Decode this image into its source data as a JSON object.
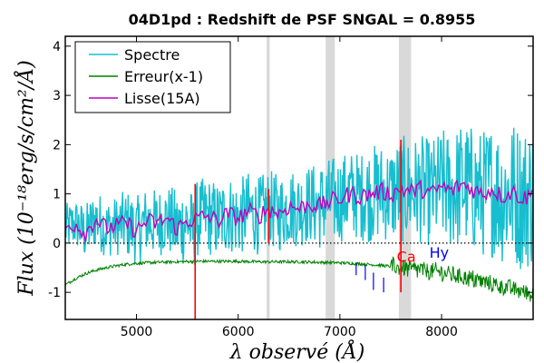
{
  "chart_data": {
    "type": "line",
    "title": "04D1pd : Redshift de PSF SNGAL = 0.8955",
    "xlabel": "λ observé (Å)",
    "ylabel": "Flux (10⁻¹⁸erg/s/cm²/Å)",
    "xlim": [
      4300,
      8900
    ],
    "ylim": [
      -1.55,
      4.2
    ],
    "x_ticks": [
      5000,
      6000,
      7000,
      8000
    ],
    "x_tick_labels": [
      "5000",
      "6000",
      "7000",
      "8000"
    ],
    "y_ticks": [
      -1,
      0,
      1,
      2,
      3,
      4
    ],
    "y_tick_labels": [
      "-1",
      "0",
      "1",
      "2",
      "3",
      "4"
    ],
    "legend_position": "top-left",
    "series": [
      {
        "name": "Spectre",
        "color": "#17becf",
        "x": [
          4300,
          4400,
          4500,
          4600,
          4700,
          4800,
          4900,
          5000,
          5100,
          5200,
          5300,
          5400,
          5500,
          5560,
          5600,
          5700,
          5800,
          5900,
          6000,
          6100,
          6200,
          6300,
          6400,
          6500,
          6600,
          6700,
          6800,
          6900,
          7000,
          7100,
          7200,
          7300,
          7400,
          7500,
          7600,
          7700,
          7800,
          7900,
          8000,
          8100,
          8200,
          8300,
          8400,
          8500,
          8600,
          8700,
          8800,
          8900
        ],
        "y": [
          0.3,
          0.4,
          0.2,
          0.5,
          0.3,
          0.35,
          0.4,
          0.25,
          0.45,
          0.4,
          0.5,
          0.3,
          0.45,
          0.2,
          0.5,
          0.55,
          0.45,
          0.6,
          0.5,
          0.65,
          0.55,
          0.7,
          0.6,
          0.75,
          0.7,
          0.8,
          0.75,
          0.85,
          0.9,
          1.0,
          0.95,
          1.0,
          1.05,
          1.0,
          1.1,
          1.05,
          1.1,
          1.0,
          1.15,
          1.05,
          1.2,
          1.1,
          1.0,
          1.1,
          0.95,
          1.05,
          0.9,
          1.0
        ],
        "noise": [
          0.5,
          0.5,
          0.6,
          0.6,
          0.6,
          0.6,
          0.7,
          0.7,
          0.7,
          0.7,
          0.7,
          0.8,
          0.8,
          0.8,
          0.8,
          0.8,
          0.8,
          0.8,
          0.8,
          0.8,
          0.8,
          0.8,
          0.8,
          0.8,
          0.8,
          0.8,
          0.9,
          0.9,
          0.9,
          0.9,
          0.9,
          1.0,
          1.0,
          1.0,
          1.1,
          1.1,
          1.1,
          1.1,
          1.2,
          1.2,
          1.3,
          1.3,
          1.3,
          1.4,
          1.4,
          1.5,
          1.5,
          1.5
        ]
      },
      {
        "name": "Erreur(x-1)",
        "color": "#008000",
        "x": [
          4300,
          4400,
          4500,
          4600,
          4700,
          4800,
          4900,
          5000,
          5200,
          5400,
          5600,
          5800,
          6000,
          6200,
          6400,
          6600,
          6800,
          7000,
          7200,
          7400,
          7600,
          7800,
          8000,
          8200,
          8400,
          8600,
          8800,
          8900
        ],
        "y": [
          -0.85,
          -0.72,
          -0.62,
          -0.55,
          -0.5,
          -0.46,
          -0.43,
          -0.41,
          -0.39,
          -0.38,
          -0.37,
          -0.37,
          -0.37,
          -0.38,
          -0.38,
          -0.38,
          -0.39,
          -0.4,
          -0.42,
          -0.45,
          -0.5,
          -0.55,
          -0.6,
          -0.68,
          -0.78,
          -0.88,
          -0.98,
          -1.05
        ]
      },
      {
        "name": "Lisse(15A)",
        "color": "#bf00bf",
        "x": [
          4300,
          4400,
          4500,
          4600,
          4700,
          4800,
          4900,
          5000,
          5100,
          5200,
          5300,
          5400,
          5500,
          5600,
          5700,
          5800,
          5900,
          6000,
          6100,
          6200,
          6300,
          6400,
          6500,
          6600,
          6700,
          6800,
          6900,
          7000,
          7100,
          7200,
          7300,
          7400,
          7500,
          7600,
          7700,
          7800,
          7900,
          8000,
          8100,
          8200,
          8300,
          8400,
          8500,
          8600,
          8700,
          8800,
          8900
        ],
        "y": [
          0.3,
          0.4,
          0.2,
          0.5,
          0.3,
          0.35,
          0.4,
          0.25,
          0.45,
          0.4,
          0.5,
          0.3,
          0.45,
          0.5,
          0.55,
          0.45,
          0.6,
          0.5,
          0.65,
          0.55,
          0.7,
          0.6,
          0.75,
          0.7,
          0.8,
          0.75,
          0.85,
          0.9,
          1.0,
          0.95,
          1.0,
          1.05,
          1.0,
          1.1,
          1.05,
          1.1,
          1.0,
          1.15,
          1.05,
          1.2,
          1.1,
          1.0,
          1.1,
          0.95,
          1.05,
          0.9,
          1.0
        ],
        "noise": 0.18
      }
    ],
    "reference_line": {
      "y": 0,
      "style": "dotted",
      "color": "#000000"
    },
    "shaded_bands": [
      {
        "x0": 6280,
        "x1": 6310
      },
      {
        "x0": 6860,
        "x1": 6950
      },
      {
        "x0": 7580,
        "x1": 7700
      }
    ],
    "emission_lines": [
      {
        "x": 5577,
        "y0": -1.55,
        "y1": 1.2,
        "color": "#ff0000"
      },
      {
        "x": 6300,
        "y0": 0.0,
        "y1": 1.1,
        "color": "#ff0000"
      },
      {
        "x": 7600,
        "y0": -1.0,
        "y1": 2.1,
        "color": "#ff0000"
      }
    ],
    "absorption_ticks": [
      {
        "x": 7160,
        "y0": -0.4,
        "y1": -0.65
      },
      {
        "x": 7250,
        "y0": -0.45,
        "y1": -0.75
      },
      {
        "x": 7330,
        "y0": -0.6,
        "y1": -0.95
      },
      {
        "x": 7430,
        "y0": -0.7,
        "y1": -1.0
      }
    ],
    "annotations": [
      {
        "text": "Ca",
        "x": 7560,
        "y": -0.38,
        "color": "#ff0000"
      },
      {
        "text": "Hy",
        "x": 7880,
        "y": -0.3,
        "color": "#0000ff"
      }
    ]
  }
}
